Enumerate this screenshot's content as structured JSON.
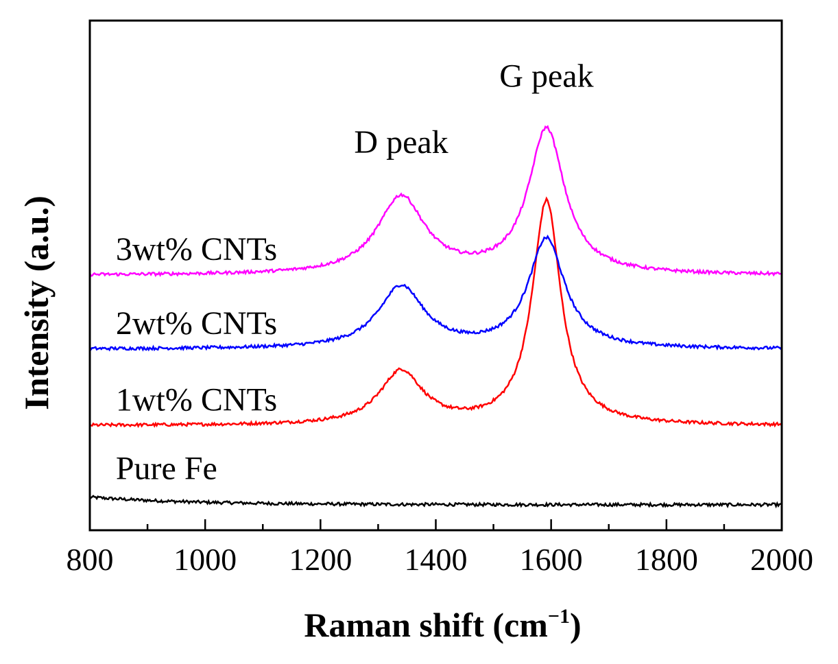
{
  "chart_data": {
    "type": "line",
    "title": "",
    "xlabel": "Raman shift (cm",
    "xlabel_sup": "−1",
    "xlabel_close": ")",
    "ylabel": "Intensity (a.u.)",
    "xlim": [
      800,
      2000
    ],
    "ylim": [
      0,
      1
    ],
    "xticks": [
      800,
      1000,
      1200,
      1400,
      1600,
      1800,
      2000
    ],
    "xtick_labels": [
      "800",
      "1000",
      "1200",
      "1400",
      "1600",
      "1800",
      "2000"
    ],
    "y_ticks_shown": false,
    "grid": false,
    "series": [
      {
        "name": "Pure Fe",
        "color": "#000000",
        "baseline": 0.05,
        "start_offset": 0.015,
        "peaks": []
      },
      {
        "name": "1wt% CNTs",
        "color": "#ff0000",
        "baseline": 0.205,
        "peaks": [
          {
            "center": 1340,
            "height": 0.105,
            "width": 45
          },
          {
            "center": 1592,
            "height": 0.44,
            "width": 30
          }
        ]
      },
      {
        "name": "2wt% CNTs",
        "color": "#0000ff",
        "baseline": 0.355,
        "peaks": [
          {
            "center": 1340,
            "height": 0.122,
            "width": 48
          },
          {
            "center": 1592,
            "height": 0.215,
            "width": 38
          }
        ]
      },
      {
        "name": "3wt% CNTs",
        "color": "#ff00ff",
        "baseline": 0.5,
        "peaks": [
          {
            "center": 1340,
            "height": 0.152,
            "width": 50
          },
          {
            "center": 1592,
            "height": 0.285,
            "width": 38
          }
        ]
      }
    ],
    "annotations": [
      {
        "text": "D peak",
        "x": 1340,
        "y": 0.74
      },
      {
        "text": "G peak",
        "x": 1592,
        "y": 0.87
      },
      {
        "text": "3wt% CNTs",
        "x": 845,
        "y": 0.53
      },
      {
        "text": "2wt% CNTs",
        "x": 845,
        "y": 0.385
      },
      {
        "text": "1wt% CNTs",
        "x": 845,
        "y": 0.235
      },
      {
        "text": "Pure Fe",
        "x": 845,
        "y": 0.1
      }
    ]
  }
}
